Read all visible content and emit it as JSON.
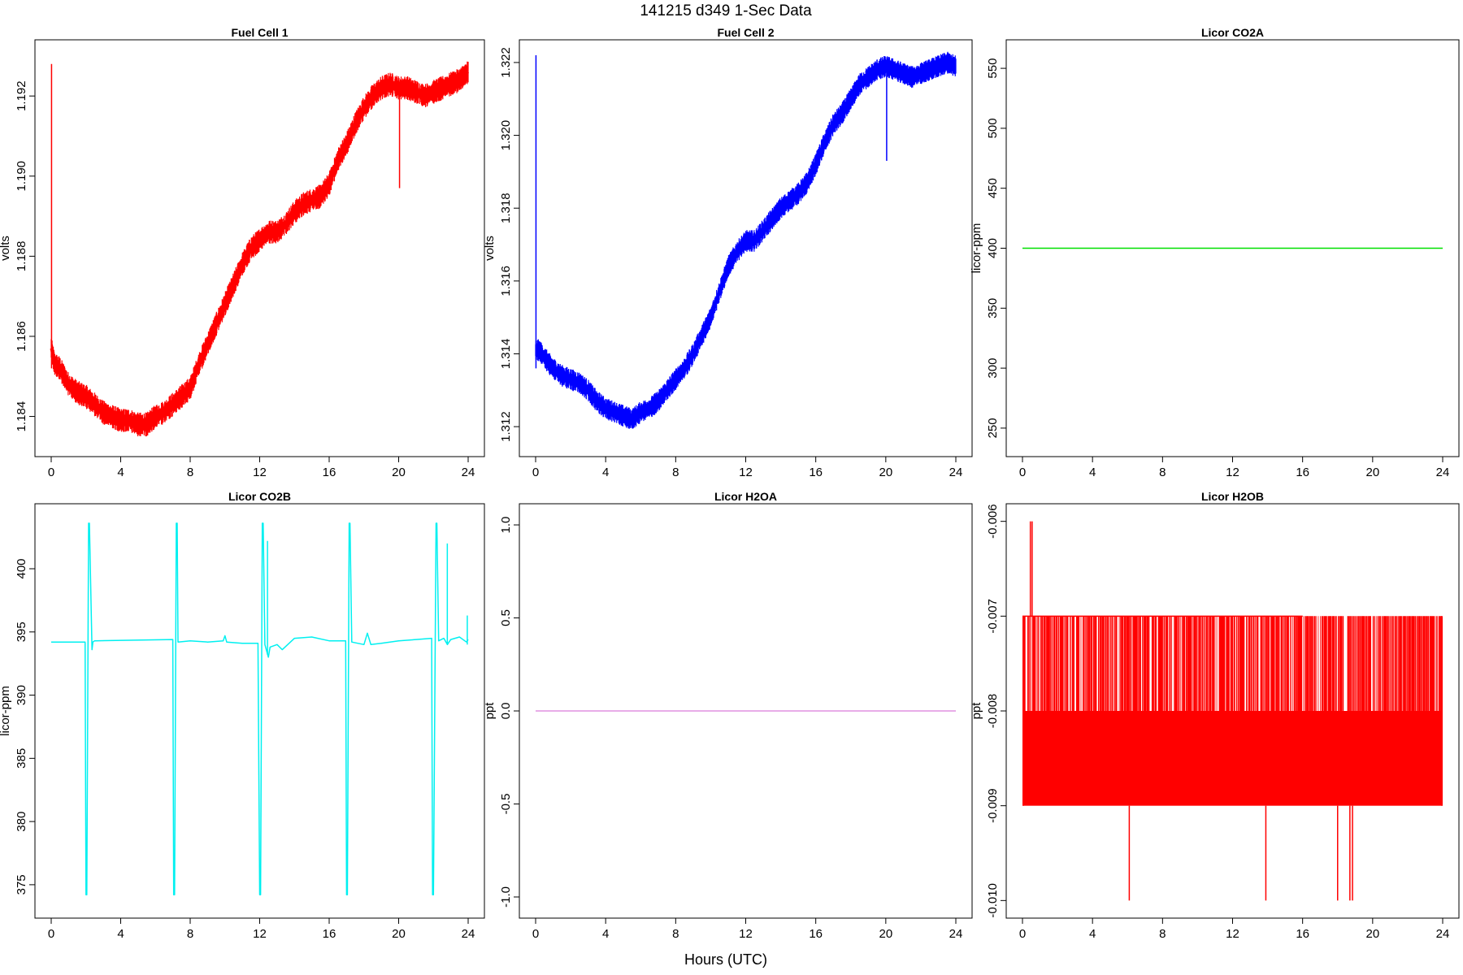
{
  "page": {
    "title": "141215   d349   1-Sec Data",
    "xlabel": "Hours (UTC)"
  },
  "chart_data": [
    {
      "type": "line",
      "title": "Fuel Cell 1",
      "ylabel": "volts",
      "color": "#ff0000",
      "xlim": [
        0,
        24
      ],
      "ylim": [
        1.1832,
        1.1932
      ],
      "xticks": [
        0,
        4,
        8,
        12,
        16,
        20,
        24
      ],
      "yticks": [
        1.184,
        1.186,
        1.188,
        1.19,
        1.192
      ],
      "ytick_labels": [
        "1.184",
        "1.186",
        "1.188",
        "1.190",
        "1.192"
      ],
      "band": 0.0004,
      "x": [
        0,
        0.2,
        0.5,
        1,
        1.5,
        2,
        2.5,
        3,
        3.5,
        4,
        4.5,
        5,
        5.5,
        6,
        6.5,
        7,
        7.5,
        8,
        8.5,
        9,
        9.5,
        10,
        10.5,
        11,
        11.5,
        12,
        12.5,
        13,
        13.5,
        14,
        14.5,
        15,
        15.5,
        16,
        16.5,
        17,
        17.5,
        18,
        18.5,
        19,
        19.5,
        20,
        20.5,
        21,
        21.5,
        22,
        22.5,
        23,
        23.5,
        24
      ],
      "y": [
        1.1857,
        1.1853,
        1.1852,
        1.1848,
        1.1846,
        1.1845,
        1.1843,
        1.1841,
        1.184,
        1.1839,
        1.1839,
        1.1838,
        1.1838,
        1.184,
        1.1841,
        1.1843,
        1.1845,
        1.1847,
        1.1853,
        1.1858,
        1.1863,
        1.1868,
        1.1873,
        1.1878,
        1.1882,
        1.1884,
        1.1886,
        1.1886,
        1.1888,
        1.1891,
        1.1893,
        1.1894,
        1.1895,
        1.1898,
        1.1904,
        1.1908,
        1.1913,
        1.1917,
        1.192,
        1.1922,
        1.1923,
        1.1922,
        1.1922,
        1.1921,
        1.192,
        1.1921,
        1.1922,
        1.1923,
        1.1924,
        1.1926
      ],
      "spikes": [
        {
          "x": 0.02,
          "y1": 1.1852,
          "y2": 1.1928
        },
        {
          "x": 20.05,
          "y1": 1.1922,
          "y2": 1.1897
        }
      ]
    },
    {
      "type": "line",
      "title": "Fuel Cell 2",
      "ylabel": "volts",
      "color": "#0000ff",
      "xlim": [
        0,
        24
      ],
      "ylim": [
        1.3114,
        1.3224
      ],
      "xticks": [
        0,
        4,
        8,
        12,
        16,
        20,
        24
      ],
      "yticks": [
        1.312,
        1.314,
        1.316,
        1.318,
        1.32,
        1.322
      ],
      "ytick_labels": [
        "1.312",
        "1.314",
        "1.316",
        "1.318",
        "1.320",
        "1.322"
      ],
      "band": 0.0004,
      "x": [
        0,
        0.2,
        0.5,
        1,
        1.5,
        2,
        2.5,
        3,
        3.5,
        4,
        4.5,
        5,
        5.5,
        6,
        6.5,
        7,
        7.5,
        8,
        8.5,
        9,
        9.5,
        10,
        10.5,
        11,
        11.5,
        12,
        12.5,
        13,
        13.5,
        14,
        14.5,
        15,
        15.5,
        16,
        16.5,
        17,
        17.5,
        18,
        18.5,
        19,
        19.5,
        20,
        20.5,
        21,
        21.5,
        22,
        22.5,
        23,
        23.5,
        24
      ],
      "y": [
        1.3141,
        1.3141,
        1.3139,
        1.3136,
        1.3134,
        1.3133,
        1.3132,
        1.313,
        1.3127,
        1.3125,
        1.3124,
        1.3123,
        1.3122,
        1.3124,
        1.3125,
        1.3127,
        1.313,
        1.3133,
        1.3136,
        1.314,
        1.3145,
        1.315,
        1.3157,
        1.3164,
        1.3168,
        1.3171,
        1.3171,
        1.3174,
        1.3177,
        1.318,
        1.3182,
        1.3184,
        1.3187,
        1.3192,
        1.3198,
        1.3203,
        1.3206,
        1.321,
        1.3214,
        1.3216,
        1.3218,
        1.3219,
        1.3218,
        1.3217,
        1.3216,
        1.3217,
        1.3218,
        1.3219,
        1.322,
        1.3219
      ],
      "spikes": [
        {
          "x": 0.02,
          "y1": 1.3136,
          "y2": 1.3222
        },
        {
          "x": 20.05,
          "y1": 1.3218,
          "y2": 1.3193
        }
      ]
    },
    {
      "type": "line",
      "title": "Licor CO2A",
      "ylabel": "licor-ppm",
      "color": "#00e000",
      "xlim": [
        0,
        24
      ],
      "ylim": [
        233,
        567
      ],
      "xticks": [
        0,
        4,
        8,
        12,
        16,
        20,
        24
      ],
      "yticks": [
        250,
        300,
        350,
        400,
        450,
        500,
        550
      ],
      "ytick_labels": [
        "250",
        "300",
        "350",
        "400",
        "450",
        "500",
        "550"
      ],
      "band": 0,
      "x": [
        0,
        24
      ],
      "y": [
        400,
        400
      ],
      "spikes": []
    },
    {
      "type": "line",
      "title": "Licor CO2B",
      "ylabel": "licor-ppm",
      "color": "#00f0f0",
      "xlim": [
        0,
        24
      ],
      "ylim": [
        373,
        404.5
      ],
      "xticks": [
        0,
        4,
        8,
        12,
        16,
        20,
        24
      ],
      "yticks": [
        375,
        380,
        385,
        390,
        395,
        400
      ],
      "ytick_labels": [
        "375",
        "380",
        "385",
        "390",
        "395",
        "400"
      ],
      "band": 0,
      "x": [
        0,
        1.95,
        2.0,
        2.05,
        2.15,
        2.2,
        2.35,
        2.4,
        2.5,
        7.0,
        7.05,
        7.1,
        7.2,
        7.25,
        7.3,
        8.0,
        9.0,
        9.9,
        10.0,
        10.1,
        11.0,
        11.9,
        12.0,
        12.05,
        12.15,
        12.2,
        12.3,
        12.5,
        12.6,
        13.0,
        13.3,
        14.0,
        15.0,
        16.0,
        16.95,
        17.0,
        17.05,
        17.15,
        17.2,
        17.3,
        18.0,
        18.2,
        18.4,
        19.0,
        20.0,
        21.0,
        21.9,
        21.95,
        22.0,
        22.15,
        22.2,
        22.3,
        22.6,
        22.8,
        23.0,
        23.5,
        23.9,
        24.0
      ],
      "y": [
        394.2,
        394.2,
        374.2,
        374.2,
        403.6,
        403.6,
        393.6,
        394.2,
        394.3,
        394.4,
        374.2,
        374.2,
        403.6,
        403.6,
        394.2,
        394.3,
        394.2,
        394.3,
        394.7,
        394.2,
        394.1,
        394.1,
        374.2,
        374.2,
        403.6,
        403.6,
        394.0,
        393.0,
        393.8,
        394.0,
        393.6,
        394.5,
        394.6,
        394.3,
        394.3,
        374.2,
        374.2,
        403.6,
        403.6,
        394.2,
        394.0,
        394.9,
        394.0,
        394.1,
        394.3,
        394.4,
        394.5,
        374.2,
        374.2,
        403.6,
        403.6,
        394.3,
        394.5,
        394.0,
        394.4,
        394.6,
        394.2,
        394.4
      ],
      "spikes": [
        {
          "x": 12.45,
          "y1": 393.2,
          "y2": 402.2
        },
        {
          "x": 22.8,
          "y1": 394.0,
          "y2": 402.0
        },
        {
          "x": 23.95,
          "y1": 394.0,
          "y2": 396.3
        }
      ]
    },
    {
      "type": "line",
      "title": "Licor H2OA",
      "ylabel": "ppt",
      "color": "#e090e0",
      "xlim": [
        0,
        24
      ],
      "ylim": [
        -1.07,
        1.07
      ],
      "xticks": [
        0,
        4,
        8,
        12,
        16,
        20,
        24
      ],
      "yticks": [
        -1.0,
        -0.5,
        0.0,
        0.5,
        1.0
      ],
      "ytick_labels": [
        "-1.0",
        "-0.5",
        "0.0",
        "0.5",
        "1.0"
      ],
      "band": 0,
      "x": [
        0,
        24
      ],
      "y": [
        0,
        0
      ],
      "spikes": []
    },
    {
      "type": "area",
      "title": "Licor H2OB",
      "ylabel": "ppt",
      "color": "#ff0000",
      "xlim": [
        0,
        24
      ],
      "ylim": [
        -0.0101,
        -0.0059
      ],
      "xticks": [
        0,
        4,
        8,
        12,
        16,
        20,
        24
      ],
      "yticks": [
        -0.01,
        -0.009,
        -0.008,
        -0.007,
        -0.006
      ],
      "ytick_labels": [
        "-0.010",
        "-0.009",
        "-0.008",
        "-0.007",
        "-0.006"
      ],
      "band": 0,
      "fill_range": [
        0,
        24
      ],
      "fill_low": -0.009,
      "fill_high": -0.008,
      "fill_upper": -0.007,
      "x": [],
      "y": [],
      "spikes": [
        {
          "x": 0.45,
          "y1": -0.007,
          "y2": -0.006
        },
        {
          "x": 0.55,
          "y1": -0.007,
          "y2": -0.006
        },
        {
          "x": 6.1,
          "y1": -0.009,
          "y2": -0.01
        },
        {
          "x": 13.9,
          "y1": -0.009,
          "y2": -0.01
        },
        {
          "x": 18.0,
          "y1": -0.009,
          "y2": -0.01
        },
        {
          "x": 18.7,
          "y1": -0.009,
          "y2": -0.01
        },
        {
          "x": 18.85,
          "y1": -0.009,
          "y2": -0.01
        }
      ]
    }
  ]
}
